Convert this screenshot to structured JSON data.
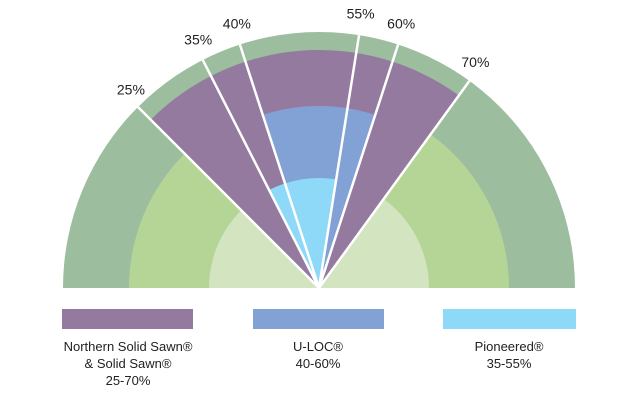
{
  "chart_data": {
    "type": "semicircle-range",
    "title": "",
    "scale": {
      "min": 0,
      "max": 100,
      "unit": "%"
    },
    "tick_labels": [
      {
        "value": 25,
        "text": "25%"
      },
      {
        "value": 35,
        "text": "35%"
      },
      {
        "value": 40,
        "text": "40%"
      },
      {
        "value": 55,
        "text": "55%"
      },
      {
        "value": 60,
        "text": "60%"
      },
      {
        "value": 70,
        "text": "70%"
      }
    ],
    "ranges": [
      {
        "name": "Northern Solid Sawn® & Solid Sawn®",
        "min": 25,
        "max": 70,
        "color": "#957aa0",
        "label_lines": [
          "Northern Solid Sawn®",
          "& Solid Sawn®",
          "25-70%"
        ]
      },
      {
        "name": "U-LOC®",
        "min": 40,
        "max": 60,
        "color": "#82a2d6",
        "label_lines": [
          "U-LOC®",
          "40-60%"
        ]
      },
      {
        "name": "Pioneered®",
        "min": 35,
        "max": 55,
        "color": "#8ed9f7",
        "label_lines": [
          "Pioneered®",
          "35-55%"
        ]
      }
    ],
    "background_rings": [
      {
        "name": "outer-ring",
        "color": "#9cbe9e"
      },
      {
        "name": "middle-ring",
        "color": "#b4d596"
      },
      {
        "name": "inner-ring",
        "color": "#d3e4c0"
      }
    ],
    "divider_color": "#ffffff"
  }
}
